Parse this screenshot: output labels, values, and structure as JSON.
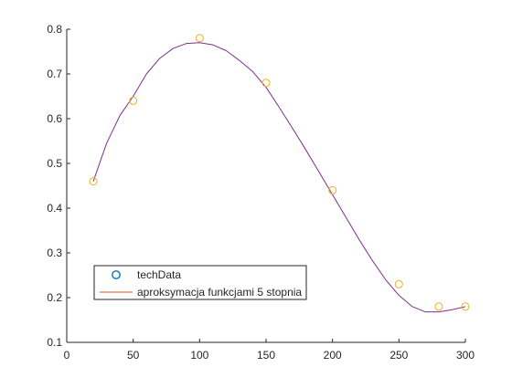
{
  "chart_data": {
    "type": "scatter",
    "title": "",
    "xlabel": "",
    "ylabel": "",
    "xlim": [
      0,
      300
    ],
    "ylim": [
      0.1,
      0.8
    ],
    "xticks": [
      0,
      50,
      100,
      150,
      200,
      250,
      300
    ],
    "yticks": [
      0.1,
      0.2,
      0.3,
      0.4,
      0.5,
      0.6,
      0.7,
      0.8
    ],
    "xtick_labels": [
      "0",
      "50",
      "100",
      "150",
      "200",
      "250",
      "300"
    ],
    "ytick_labels": [
      "0.1",
      "0.2",
      "0.3",
      "0.4",
      "0.5",
      "0.6",
      "0.7",
      "0.8"
    ],
    "grid": false,
    "legend_position": "bottom-left",
    "series": [
      {
        "name": "techData",
        "kind": "markers",
        "marker": "circle",
        "legend_color": "#0072BD",
        "color": "#EDB120",
        "x": [
          20,
          50,
          100,
          150,
          200,
          250,
          280,
          300
        ],
        "y": [
          0.46,
          0.64,
          0.78,
          0.68,
          0.44,
          0.23,
          0.18,
          0.18
        ]
      },
      {
        "name": "aproksymacja funkcjami 5 stopnia",
        "kind": "line",
        "legend_color": "#D95319",
        "color": "#7E2F8E",
        "x": [
          20,
          30,
          40,
          50,
          60,
          70,
          80,
          90,
          100,
          110,
          120,
          130,
          140,
          150,
          160,
          170,
          180,
          190,
          200,
          210,
          220,
          230,
          240,
          250,
          260,
          270,
          280,
          290,
          300
        ],
        "y": [
          0.46,
          0.545,
          0.607,
          0.65,
          0.7,
          0.735,
          0.757,
          0.768,
          0.77,
          0.765,
          0.752,
          0.73,
          0.705,
          0.67,
          0.625,
          0.578,
          0.53,
          0.48,
          0.43,
          0.38,
          0.33,
          0.283,
          0.24,
          0.205,
          0.18,
          0.168,
          0.168,
          0.173,
          0.18
        ]
      }
    ]
  }
}
